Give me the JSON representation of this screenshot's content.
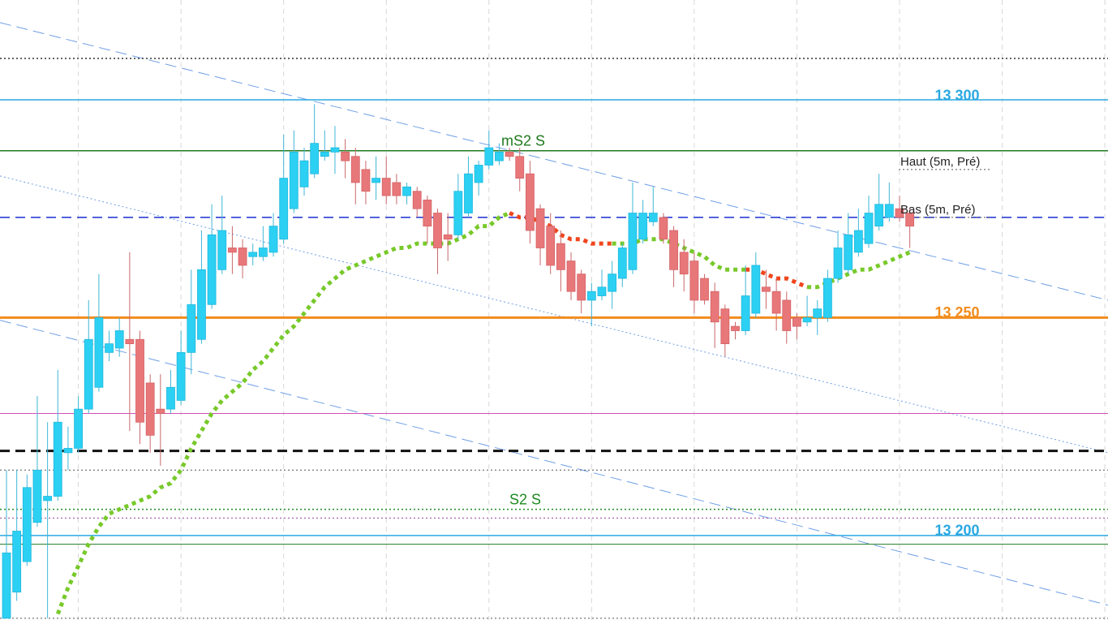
{
  "chart_data": {
    "type": "candlestick",
    "ylim": [
      13180.6,
      13322.9
    ],
    "up_color": "#2cd0f3",
    "down_color": "#e8777a",
    "candles": [
      [
        13181,
        13215,
        13181,
        13196
      ],
      [
        13187,
        13215,
        13185,
        13201
      ],
      [
        13194,
        13214,
        13193,
        13211
      ],
      [
        13203,
        13232,
        13202,
        13215
      ],
      [
        13208,
        13226,
        13181,
        13209
      ],
      [
        13209,
        13238,
        13208,
        13226
      ],
      [
        13219,
        13225,
        13215,
        13220
      ],
      [
        13220,
        13232,
        13219,
        13229
      ],
      [
        13229,
        13254,
        13228,
        13245
      ],
      [
        13234,
        13260,
        13233,
        13250
      ],
      [
        13242,
        13247,
        13240,
        13244
      ],
      [
        13243,
        13250,
        13241,
        13247
      ],
      [
        13245,
        13265,
        13224,
        13244
      ],
      [
        13245,
        13247,
        13221,
        13226
      ],
      [
        13235,
        13237,
        13219,
        13223
      ],
      [
        13229,
        13237,
        13216,
        13228
      ],
      [
        13229,
        13238,
        13228,
        13234
      ],
      [
        13231,
        13247,
        13230,
        13242
      ],
      [
        13242,
        13261,
        13237,
        13253
      ],
      [
        13245,
        13270,
        13244,
        13261
      ],
      [
        13253,
        13276,
        13252,
        13269
      ],
      [
        13261,
        13278,
        13260,
        13270
      ],
      [
        13266,
        13271,
        13260,
        13265
      ],
      [
        13266,
        13268,
        13259,
        13262
      ],
      [
        13264,
        13267,
        13262,
        13265
      ],
      [
        13264,
        13271,
        13263,
        13266
      ],
      [
        13265,
        13274,
        13264,
        13271
      ],
      [
        13268,
        13292,
        13267,
        13282
      ],
      [
        13275,
        13293,
        13274,
        13288
      ],
      [
        13280,
        13289,
        13278,
        13286
      ],
      [
        13283,
        13299,
        13282,
        13290
      ],
      [
        13287,
        13293,
        13286,
        13288
      ],
      [
        13288,
        13294,
        13283,
        13289
      ],
      [
        13288,
        13291,
        13282,
        13286
      ],
      [
        13287,
        13289,
        13276,
        13281
      ],
      [
        13284,
        13286,
        13276,
        13279
      ],
      [
        13281,
        13287,
        13277,
        13282
      ],
      [
        13282,
        13287,
        13276,
        13278
      ],
      [
        13281,
        13283,
        13276,
        13278
      ],
      [
        13278,
        13281,
        13276,
        13280
      ],
      [
        13279,
        13280,
        13273,
        13275
      ],
      [
        13277,
        13278,
        13267,
        13271
      ],
      [
        13274,
        13275,
        13260,
        13266
      ],
      [
        13269,
        13274,
        13263,
        13268
      ],
      [
        13269,
        13283,
        13268,
        13279
      ],
      [
        13274,
        13287,
        13273,
        13283
      ],
      [
        13281,
        13286,
        13278,
        13285
      ],
      [
        13285,
        13293,
        13284,
        13289
      ],
      [
        13286,
        13290,
        13285,
        13288
      ],
      [
        13288,
        13289,
        13286,
        13287
      ],
      [
        13287,
        13289,
        13279,
        13282
      ],
      [
        13283,
        13286,
        13267,
        13270
      ],
      [
        13275,
        13276,
        13262,
        13266
      ],
      [
        13271,
        13274,
        13260,
        13262
      ],
      [
        13267,
        13270,
        13256,
        13261
      ],
      [
        13263,
        13265,
        13254,
        13256
      ],
      [
        13260,
        13261,
        13251,
        13254
      ],
      [
        13254,
        13258,
        13248,
        13256
      ],
      [
        13255,
        13261,
        13254,
        13257
      ],
      [
        13256,
        13263,
        13252,
        13260
      ],
      [
        13259,
        13267,
        13257,
        13266
      ],
      [
        13261,
        13281,
        13260,
        13274
      ],
      [
        13268,
        13277,
        13267,
        13274
      ],
      [
        13272,
        13280,
        13271,
        13274
      ],
      [
        13273,
        13274,
        13267,
        13268
      ],
      [
        13270,
        13271,
        13257,
        13261
      ],
      [
        13265,
        13268,
        13256,
        13260
      ],
      [
        13263,
        13265,
        13251,
        13254
      ],
      [
        13259,
        13260,
        13253,
        13254
      ],
      [
        13256,
        13258,
        13243,
        13249
      ],
      [
        13252,
        13253,
        13241,
        13244
      ],
      [
        13248,
        13249,
        13245,
        13247
      ],
      [
        13247,
        13262,
        13246,
        13255
      ],
      [
        13251,
        13265,
        13250,
        13262
      ],
      [
        13257,
        13261,
        13252,
        13256
      ],
      [
        13256,
        13259,
        13247,
        13251
      ],
      [
        13254,
        13256,
        13244,
        13247
      ],
      [
        13250,
        13251,
        13245,
        13248
      ],
      [
        13249,
        13255,
        13248,
        13250
      ],
      [
        13250,
        13254,
        13246,
        13252
      ],
      [
        13250,
        13261,
        13249,
        13259
      ],
      [
        13259,
        13270,
        13258,
        13266
      ],
      [
        13261,
        13274,
        13260,
        13269
      ],
      [
        13265,
        13275,
        13264,
        13270
      ],
      [
        13267,
        13278,
        13266,
        13274
      ],
      [
        13271,
        13283,
        13270,
        13276
      ],
      [
        13273,
        13281,
        13272,
        13276
      ],
      [
        13275,
        13278,
        13272,
        13273
      ],
      [
        13274,
        13275,
        13266,
        13271
      ]
    ],
    "overlays": [
      {
        "color": "#78c92a",
        "values": [
          null,
          null,
          null,
          null,
          null,
          13182,
          13188,
          13193,
          13198,
          13202,
          13205,
          13206,
          13207,
          13208,
          13209,
          13211,
          13212,
          13215,
          13220,
          13224,
          13228,
          13231,
          13233,
          13235,
          13238,
          13240,
          13243,
          13246,
          13248,
          13251,
          13254,
          13257,
          13259,
          13261,
          13262,
          13263,
          13264,
          13265,
          13266,
          13266,
          13267,
          13267,
          13267,
          13267,
          13268,
          13269,
          13271,
          13271,
          13273,
          13274,
          null,
          null,
          null,
          null,
          null,
          null,
          null,
          null,
          null,
          13267,
          13267,
          13267,
          13268,
          13268,
          13268,
          13267,
          13266,
          13265,
          13264,
          13262,
          13261,
          13261,
          13261,
          null,
          null,
          null,
          null,
          null,
          13257,
          13257,
          13258,
          13259,
          13260,
          13261,
          13261,
          13262,
          13263,
          13264,
          13265
        ]
      },
      {
        "color": "#f0451c",
        "values": [
          null,
          null,
          null,
          null,
          null,
          null,
          null,
          null,
          null,
          null,
          null,
          null,
          null,
          null,
          null,
          null,
          null,
          null,
          null,
          null,
          null,
          null,
          null,
          null,
          null,
          null,
          null,
          null,
          null,
          null,
          null,
          null,
          null,
          null,
          null,
          null,
          null,
          null,
          null,
          null,
          null,
          null,
          null,
          null,
          null,
          null,
          null,
          null,
          null,
          13274,
          13273,
          13273,
          13272,
          13271,
          13269,
          13268,
          13268,
          13267,
          13267,
          13267,
          null,
          null,
          null,
          null,
          null,
          null,
          null,
          null,
          null,
          null,
          null,
          null,
          13261,
          13261,
          13260,
          13259,
          13259,
          13258,
          13257,
          null,
          null,
          null,
          null,
          null,
          null,
          null,
          null,
          null,
          null
        ]
      }
    ],
    "trendlines": [
      {
        "color": "#6f9ee6",
        "dash": "dashed",
        "values": [
          13317.7,
          13254
        ]
      },
      {
        "color": "#6f9ee6",
        "dash": "dotted",
        "values": [
          13282.5,
          13219
        ]
      },
      {
        "color": "#6f9ee6",
        "dash": "dashed",
        "values": [
          13249.4,
          13184
        ]
      }
    ],
    "levels": [
      {
        "value": 13309.5,
        "color": "#333333",
        "dash": "dotted",
        "width": 1.5
      },
      {
        "value": 13300,
        "label": "13 300",
        "color": "#2aa8e2",
        "dash": "solid",
        "width": 1.5
      },
      {
        "value": 13288.3,
        "label": "mS2 S",
        "color": "#1f7a1f",
        "dash": "solid",
        "width": 1.5
      },
      {
        "value": 13284,
        "label": "Haut (5m, Pré)",
        "color": "#555555",
        "dash": "dotted",
        "width": 1
      },
      {
        "value": 13273,
        "color": "#1a2fd0",
        "dash": "dashed",
        "width": 1.5
      },
      {
        "value": 13273,
        "label": "Bas (5m, Pré)",
        "color": "#555555",
        "dash": "dotted",
        "width": 1
      },
      {
        "value": 13250,
        "label": "13 250",
        "color": "#f28c1c",
        "dash": "solid",
        "width": 3
      },
      {
        "value": 13228,
        "color": "#d54fb5",
        "dash": "solid",
        "width": 1
      },
      {
        "value": 13219.4,
        "color": "#111111",
        "dash": "dashed",
        "width": 3
      },
      {
        "value": 13215,
        "color": "#555555",
        "dash": "dotted",
        "width": 1
      },
      {
        "value": 13206,
        "label": "S2 S",
        "color": "#1f8a1f",
        "dash": "dotted",
        "width": 1.5
      },
      {
        "value": 13204,
        "color": "#9a3f9a",
        "dash": "dotted",
        "width": 1
      },
      {
        "value": 13200,
        "label": "13 200",
        "color": "#2aa8e2",
        "dash": "solid",
        "width": 1.5
      },
      {
        "value": 13198,
        "color": "#1f7a1f",
        "dash": "solid",
        "width": 1
      },
      {
        "value": 13181,
        "color": "#555555",
        "dash": "dotted",
        "width": 1
      }
    ]
  }
}
